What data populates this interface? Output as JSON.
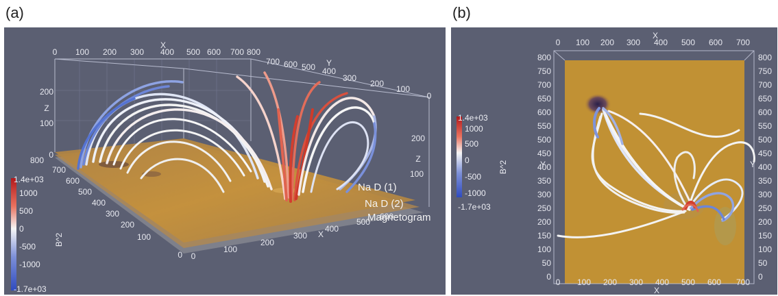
{
  "panels": {
    "a": {
      "label": "(a)",
      "axis_titles": {
        "x": "X",
        "y": "Y",
        "z_left": "Z",
        "z_right": "Z"
      },
      "x_ticks": [
        "0",
        "100",
        "200",
        "300",
        "400",
        "500",
        "600",
        "700",
        "800"
      ],
      "y_top_ticks": [
        "700",
        "600",
        "500",
        "400",
        "300",
        "200",
        "100",
        "0"
      ],
      "z_left_ticks": [
        "200",
        "100",
        "0"
      ],
      "z_right_ticks": [
        "200",
        "100"
      ],
      "y_left_ticks": [
        "800",
        "700",
        "600",
        "500",
        "400",
        "300",
        "200",
        "100",
        "0"
      ],
      "x_bottom_ticks": [
        "0",
        "100",
        "200",
        "300",
        "400",
        "500",
        "600"
      ],
      "layers": [
        "Na D (1)",
        "Na D (2)",
        "Magnetogram"
      ],
      "colorbar": {
        "title": "B^2",
        "labels": [
          "1.4e+03",
          "1000",
          "500",
          "0",
          "-500",
          "-1000",
          "-1.7e+03"
        ]
      }
    },
    "b": {
      "label": "(b)",
      "axis_titles": {
        "x_top": "X",
        "x_bottom": "X",
        "y_left": "Y",
        "y_right": "Y"
      },
      "x_ticks": [
        "0",
        "100",
        "200",
        "300",
        "400",
        "500",
        "600",
        "700"
      ],
      "y_ticks": [
        "800",
        "750",
        "700",
        "650",
        "600",
        "550",
        "500",
        "450",
        "400",
        "350",
        "300",
        "250",
        "200",
        "150",
        "100",
        "50",
        "0"
      ],
      "colorbar": {
        "title": "B^2",
        "labels": [
          "1.4e+03",
          "1000",
          "500",
          "0",
          "-500",
          "-1000",
          "-1.7e+03"
        ]
      }
    }
  },
  "colors": {
    "background": "#5b5f72",
    "positive": "#d43a2c",
    "negative": "#3c5bc8",
    "neutral": "#f4f4f4",
    "surface": "#c9922f"
  }
}
